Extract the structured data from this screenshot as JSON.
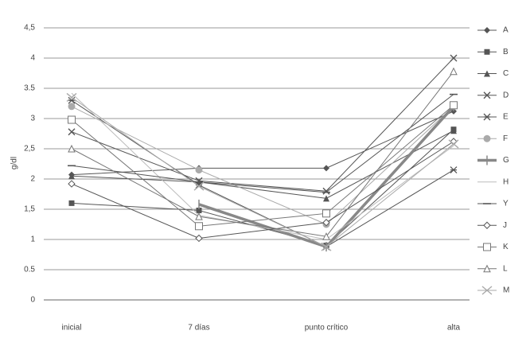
{
  "chart_data": {
    "type": "line",
    "y_label": "g/dl",
    "categories": [
      "inicial",
      "7 días",
      "punto crítico",
      "alta"
    ],
    "ylim": [
      0,
      4.5
    ],
    "yticks": [
      0,
      0.5,
      1,
      {
        "value": 1.5,
        "label": "1,5"
      },
      2,
      {
        "value": 2.5,
        "label": "2,5"
      },
      3,
      3.5,
      4,
      {
        "value": 4.5,
        "label": "4,5"
      }
    ],
    "grid": true,
    "legend": "right",
    "series": [
      {
        "name": "A",
        "color": "#555",
        "marker": "diamond",
        "values": [
          2.07,
          2.18,
          2.18,
          3.12
        ]
      },
      {
        "name": "B",
        "color": "#555",
        "marker": "square",
        "values": [
          1.6,
          1.48,
          0.9,
          2.82
        ]
      },
      {
        "name": "C",
        "color": "#555",
        "marker": "triangle",
        "values": [
          2.05,
          1.95,
          1.68,
          2.8
        ]
      },
      {
        "name": "D",
        "color": "#555",
        "marker": "x",
        "values": [
          2.78,
          1.97,
          1.8,
          4.0
        ]
      },
      {
        "name": "E",
        "color": "#555",
        "marker": "asterisk",
        "values": [
          3.3,
          1.9,
          0.88,
          2.15
        ]
      },
      {
        "name": "F",
        "color": "#aaa",
        "marker": "circle",
        "values": [
          3.2,
          2.15,
          1.25,
          3.2
        ]
      },
      {
        "name": "G",
        "color": "#888",
        "marker": "thick",
        "values": [
          null,
          1.58,
          0.88,
          3.2
        ]
      },
      {
        "name": "H",
        "color": "#bbb",
        "marker": "none",
        "values": [
          3.42,
          1.4,
          1.0,
          2.55
        ]
      },
      {
        "name": "Y",
        "color": "#555",
        "marker": "dash",
        "values": [
          2.22,
          1.95,
          1.78,
          3.4
        ]
      },
      {
        "name": "J",
        "color": "#555",
        "marker": "diamond-open",
        "values": [
          1.92,
          1.02,
          1.28,
          2.62
        ]
      },
      {
        "name": "K",
        "color": "#777",
        "marker": "square-open",
        "values": [
          2.98,
          1.22,
          1.43,
          3.22
        ]
      },
      {
        "name": "L",
        "color": "#777",
        "marker": "triangle-open",
        "values": [
          2.5,
          1.38,
          1.05,
          3.78
        ]
      },
      {
        "name": "M",
        "color": "#aaa",
        "marker": "bigx",
        "values": [
          3.35,
          1.88,
          0.88,
          2.58
        ]
      }
    ]
  }
}
